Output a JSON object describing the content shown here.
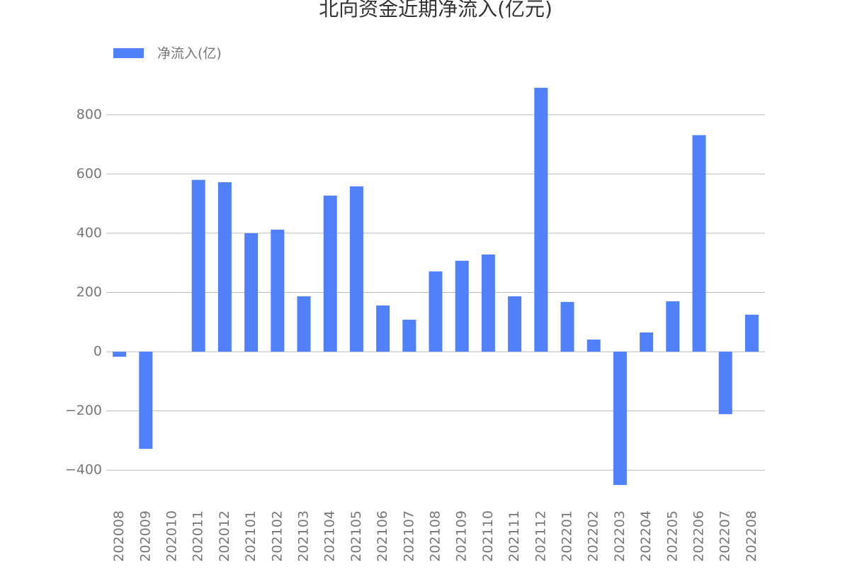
{
  "chart_data": {
    "type": "bar",
    "title": "北向资金近期净流入(亿元)",
    "categories": [
      "202008",
      "202009",
      "202010",
      "202011",
      "202012",
      "202101",
      "202102",
      "202103",
      "202104",
      "202105",
      "202106",
      "202107",
      "202108",
      "202109",
      "202110",
      "202111",
      "202112",
      "202201",
      "202202",
      "202203",
      "202204",
      "202205",
      "202206",
      "202207",
      "202208"
    ],
    "series": [
      {
        "name": "净流入(亿)",
        "color": "#5081fa",
        "values": [
          -17,
          -328,
          0,
          580,
          572,
          400,
          412,
          187,
          527,
          558,
          156,
          108,
          271,
          307,
          328,
          187,
          891,
          168,
          41,
          -450,
          65,
          170,
          731,
          -211,
          125
        ]
      }
    ],
    "ylim": [
      -500,
      900
    ],
    "yticks": [
      {
        "value": -400,
        "label": "−400"
      },
      {
        "value": -200,
        "label": "−200"
      },
      0,
      200,
      400,
      600,
      800
    ],
    "grid": true,
    "legend": "top-left"
  }
}
